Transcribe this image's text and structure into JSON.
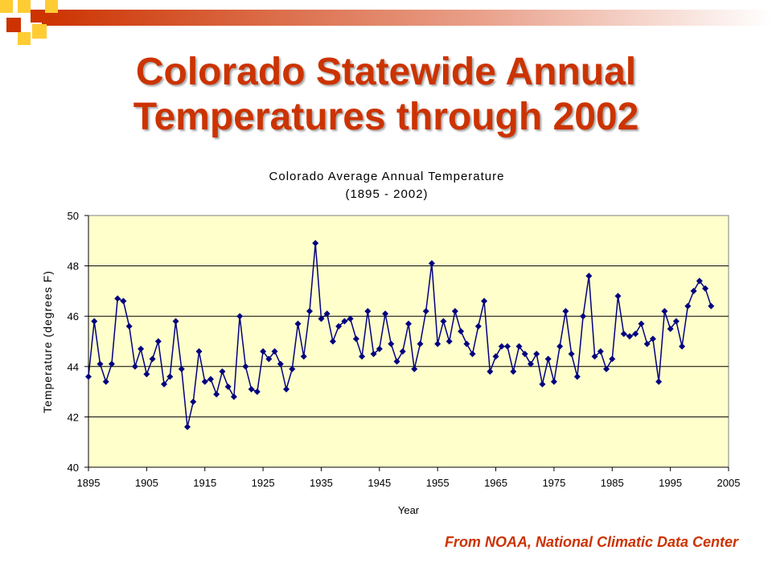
{
  "slide": {
    "title_line1": "Colorado Statewide Annual",
    "title_line2": "Temperatures through 2002",
    "source": "From NOAA, National Climatic Data Center",
    "title_color": "#cc3300",
    "decor_colors": [
      "#ffcc33",
      "#cc3300"
    ]
  },
  "chart_data": {
    "type": "line",
    "title": "Colorado Average Annual Temperature",
    "subtitle": "(1895 - 2002)",
    "xlabel": "Year",
    "ylabel": "Temperature (degrees F)",
    "xlim": [
      1895,
      2005
    ],
    "ylim": [
      40,
      50
    ],
    "x_ticks": [
      1895,
      1905,
      1915,
      1925,
      1935,
      1945,
      1955,
      1965,
      1975,
      1985,
      1995,
      2005
    ],
    "y_ticks": [
      40,
      42,
      44,
      46,
      48,
      50
    ],
    "grid": true,
    "plot_background": "#ffffcc",
    "line_color": "#000080",
    "marker": "diamond",
    "x": [
      1895,
      1896,
      1897,
      1898,
      1899,
      1900,
      1901,
      1902,
      1903,
      1904,
      1905,
      1906,
      1907,
      1908,
      1909,
      1910,
      1911,
      1912,
      1913,
      1914,
      1915,
      1916,
      1917,
      1918,
      1919,
      1920,
      1921,
      1922,
      1923,
      1924,
      1925,
      1926,
      1927,
      1928,
      1929,
      1930,
      1931,
      1932,
      1933,
      1934,
      1935,
      1936,
      1937,
      1938,
      1939,
      1940,
      1941,
      1942,
      1943,
      1944,
      1945,
      1946,
      1947,
      1948,
      1949,
      1950,
      1951,
      1952,
      1953,
      1954,
      1955,
      1956,
      1957,
      1958,
      1959,
      1960,
      1961,
      1962,
      1963,
      1964,
      1965,
      1966,
      1967,
      1968,
      1969,
      1970,
      1971,
      1972,
      1973,
      1974,
      1975,
      1976,
      1977,
      1978,
      1979,
      1980,
      1981,
      1982,
      1983,
      1984,
      1985,
      1986,
      1987,
      1988,
      1989,
      1990,
      1991,
      1992,
      1993,
      1994,
      1995,
      1996,
      1997,
      1998,
      1999,
      2000,
      2001,
      2002
    ],
    "y": [
      43.6,
      45.8,
      44.1,
      43.4,
      44.1,
      46.7,
      46.6,
      45.6,
      44.0,
      44.7,
      43.7,
      44.3,
      45.0,
      43.3,
      43.6,
      45.8,
      43.9,
      41.6,
      42.6,
      44.6,
      43.4,
      43.5,
      42.9,
      43.8,
      43.2,
      42.8,
      46.0,
      44.0,
      43.1,
      43.0,
      44.6,
      44.3,
      44.6,
      44.1,
      43.1,
      43.9,
      45.7,
      44.4,
      46.2,
      48.9,
      45.9,
      46.1,
      45.0,
      45.6,
      45.8,
      45.9,
      45.1,
      44.4,
      46.2,
      44.5,
      44.7,
      46.1,
      44.9,
      44.2,
      44.6,
      45.7,
      43.9,
      44.9,
      46.2,
      48.1,
      44.9,
      45.8,
      45.0,
      46.2,
      45.4,
      44.9,
      44.5,
      45.6,
      46.6,
      43.8,
      44.4,
      44.8,
      44.8,
      43.8,
      44.8,
      44.5,
      44.1,
      44.5,
      43.3,
      44.3,
      43.4,
      44.8,
      46.2,
      44.5,
      43.6,
      46.0,
      47.6,
      44.4,
      44.6,
      43.9,
      44.3,
      46.8,
      45.3,
      45.2,
      45.3,
      45.7,
      44.9,
      45.1,
      43.4,
      46.2,
      45.5,
      45.8,
      44.8,
      46.4,
      47.0,
      47.4,
      47.1,
      46.4
    ]
  }
}
